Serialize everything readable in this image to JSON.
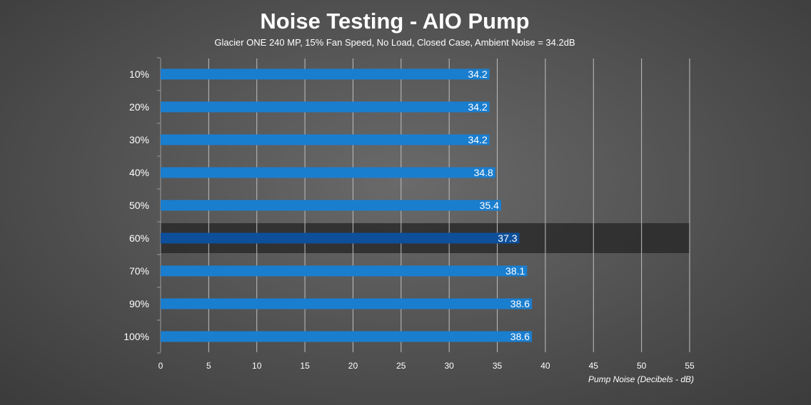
{
  "chart_data": {
    "type": "bar",
    "orientation": "horizontal",
    "title": "Noise Testing - AIO Pump",
    "subtitle": "Glacier ONE 240 MP, 15% Fan Speed, No Load, Closed Case, Ambient Noise = 34.2dB",
    "xlabel": "Pump Noise (Decibels - dB)",
    "ylabel": "",
    "xlim": [
      0,
      55
    ],
    "xticks": [
      0,
      5,
      10,
      15,
      20,
      25,
      30,
      35,
      40,
      45,
      50,
      55
    ],
    "categories": [
      "10%",
      "20%",
      "30%",
      "40%",
      "50%",
      "60%",
      "70%",
      "90%",
      "100%"
    ],
    "values": [
      34.2,
      34.2,
      34.2,
      34.8,
      35.4,
      37.3,
      38.1,
      38.6,
      38.6
    ],
    "value_labels": [
      "34.2",
      "34.2",
      "34.2",
      "34.8",
      "35.4",
      "37.3",
      "38.1",
      "38.6",
      "38.6"
    ],
    "highlighted_category": "60%",
    "grid": true,
    "colors": {
      "bar": "#1a7ecf",
      "bar_highlight": "#0d4f9a",
      "highlight_band": "#2a2a2a",
      "grid": "#bfbfbf"
    }
  }
}
